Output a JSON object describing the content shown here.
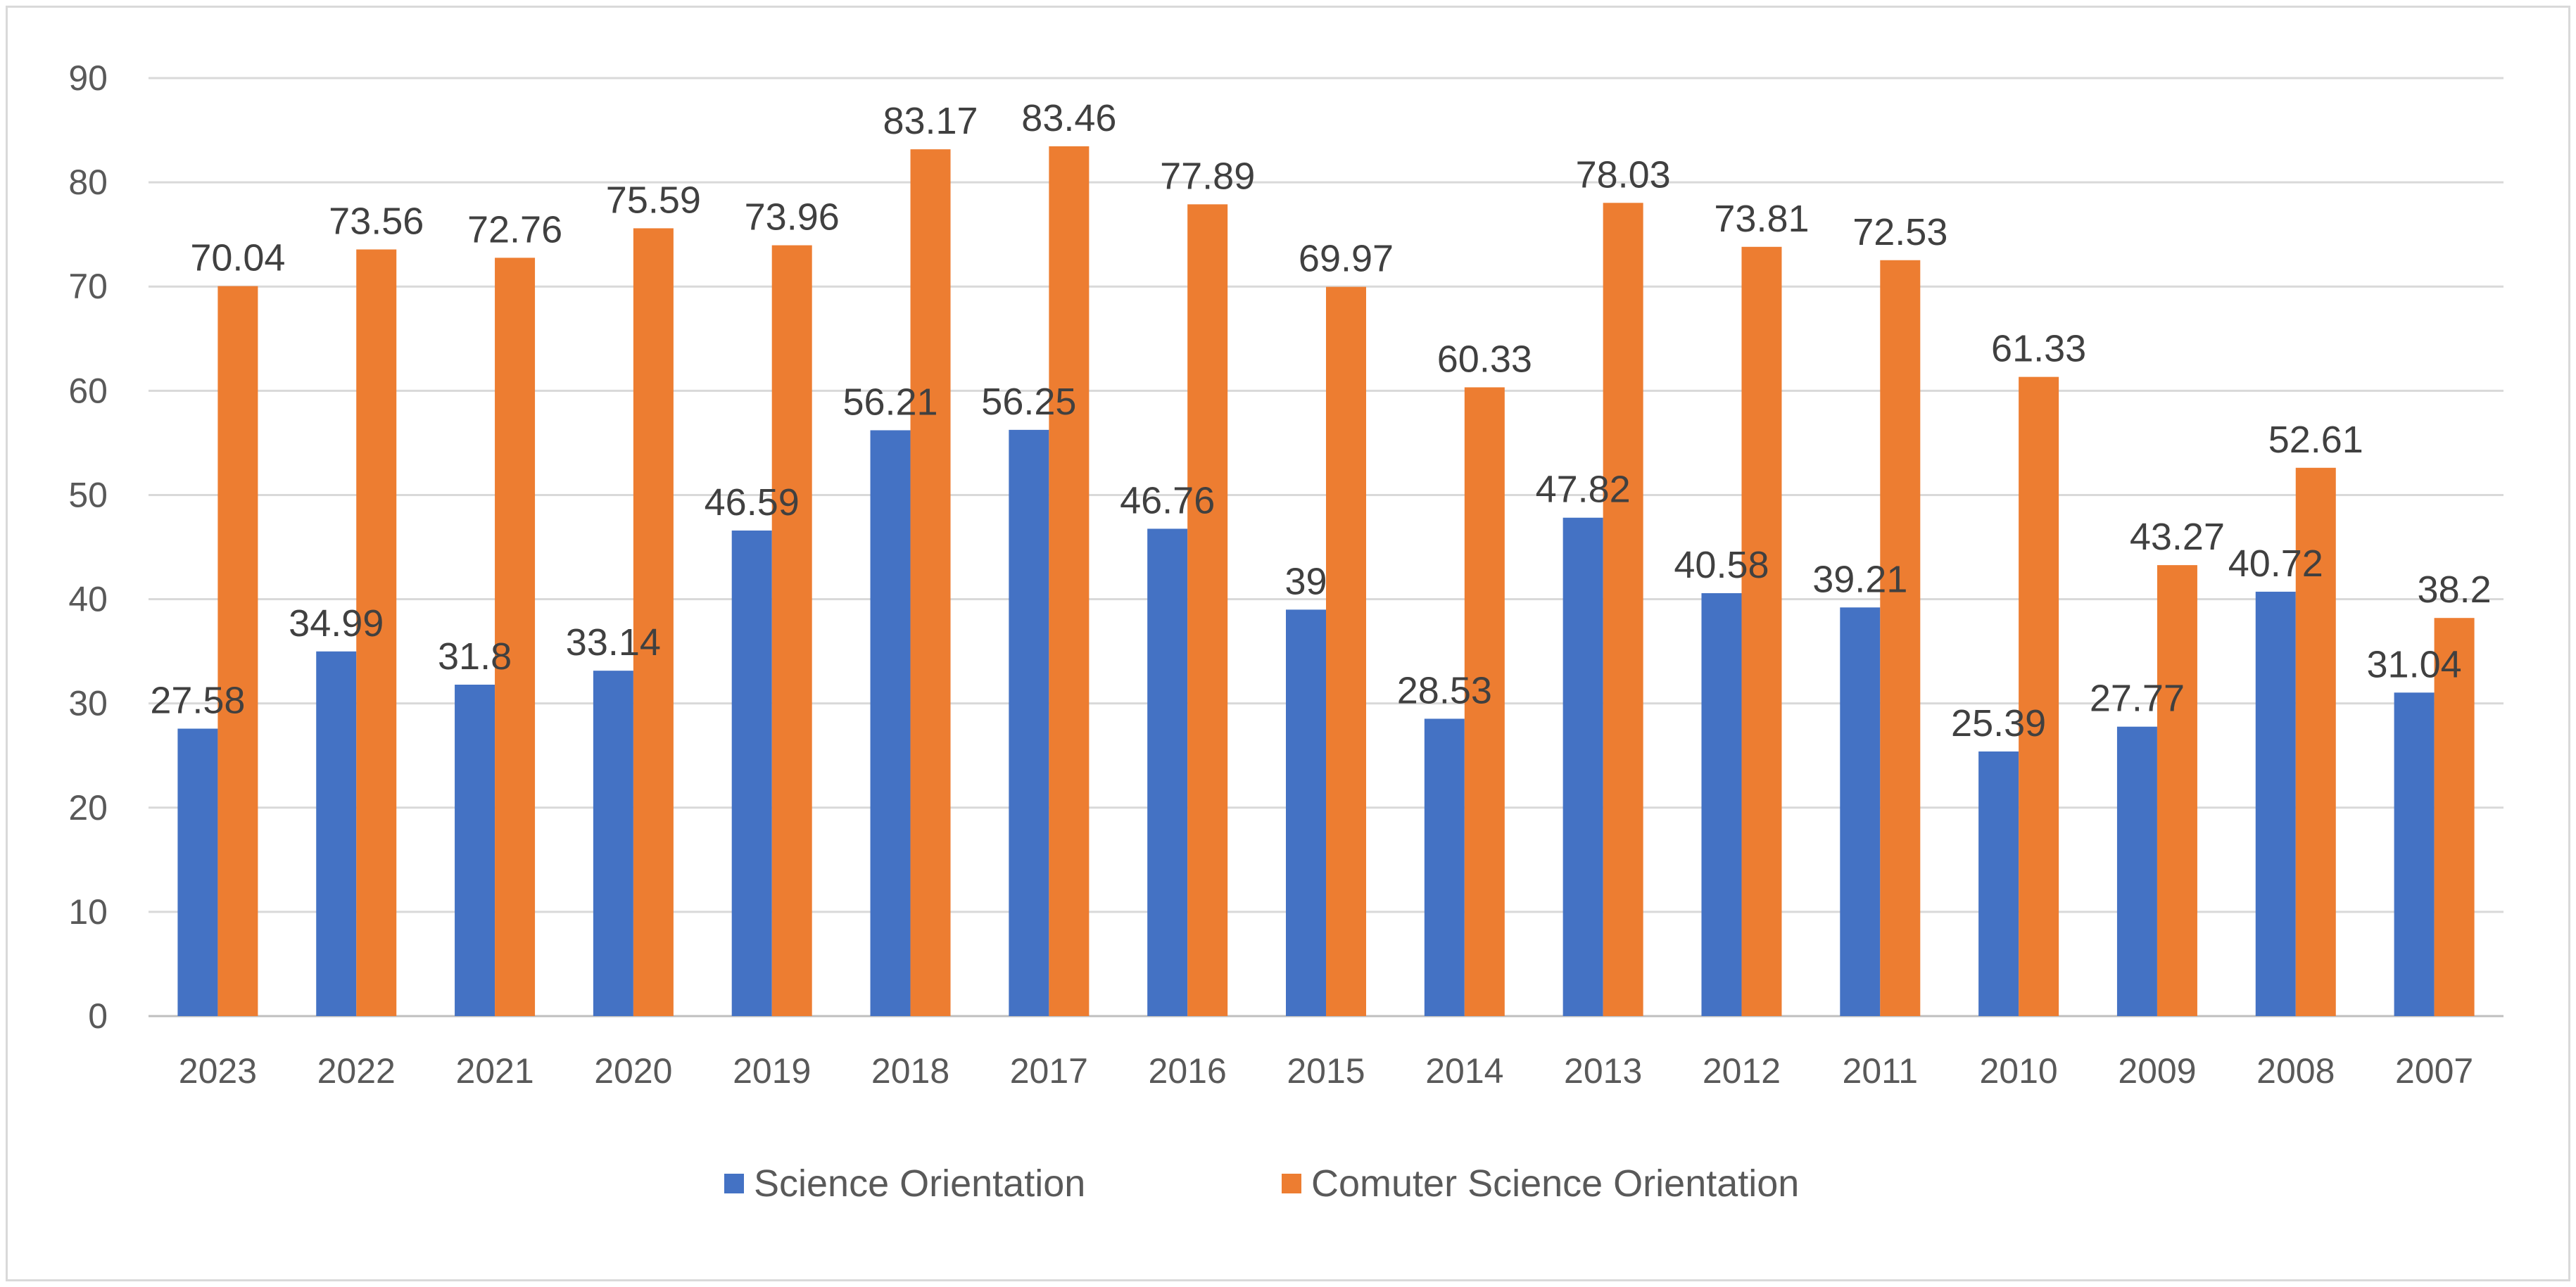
{
  "chart_data": {
    "type": "bar",
    "title": "",
    "xlabel": "",
    "ylabel": "",
    "ylim": [
      0,
      90
    ],
    "yticks": [
      0,
      10,
      20,
      30,
      40,
      50,
      60,
      70,
      80,
      90
    ],
    "grid": true,
    "legend_position": "bottom",
    "categories": [
      "2023",
      "2022",
      "2021",
      "2020",
      "2019",
      "2018",
      "2017",
      "2016",
      "2015",
      "2014",
      "2013",
      "2012",
      "2011",
      "2010",
      "2009",
      "2008",
      "2007"
    ],
    "series": [
      {
        "name": "Science Orientation",
        "color": "#4472c4",
        "values": [
          27.58,
          34.99,
          31.8,
          33.14,
          46.59,
          56.21,
          56.25,
          46.76,
          39,
          28.53,
          47.82,
          40.58,
          39.21,
          25.39,
          27.77,
          40.72,
          31.04
        ]
      },
      {
        "name": "Comuter Science Orientation",
        "color": "#ed7d31",
        "values": [
          70.04,
          73.56,
          72.76,
          75.59,
          73.96,
          83.17,
          83.46,
          77.89,
          69.97,
          60.33,
          78.03,
          73.81,
          72.53,
          61.33,
          43.27,
          52.61,
          38.2
        ]
      }
    ]
  }
}
